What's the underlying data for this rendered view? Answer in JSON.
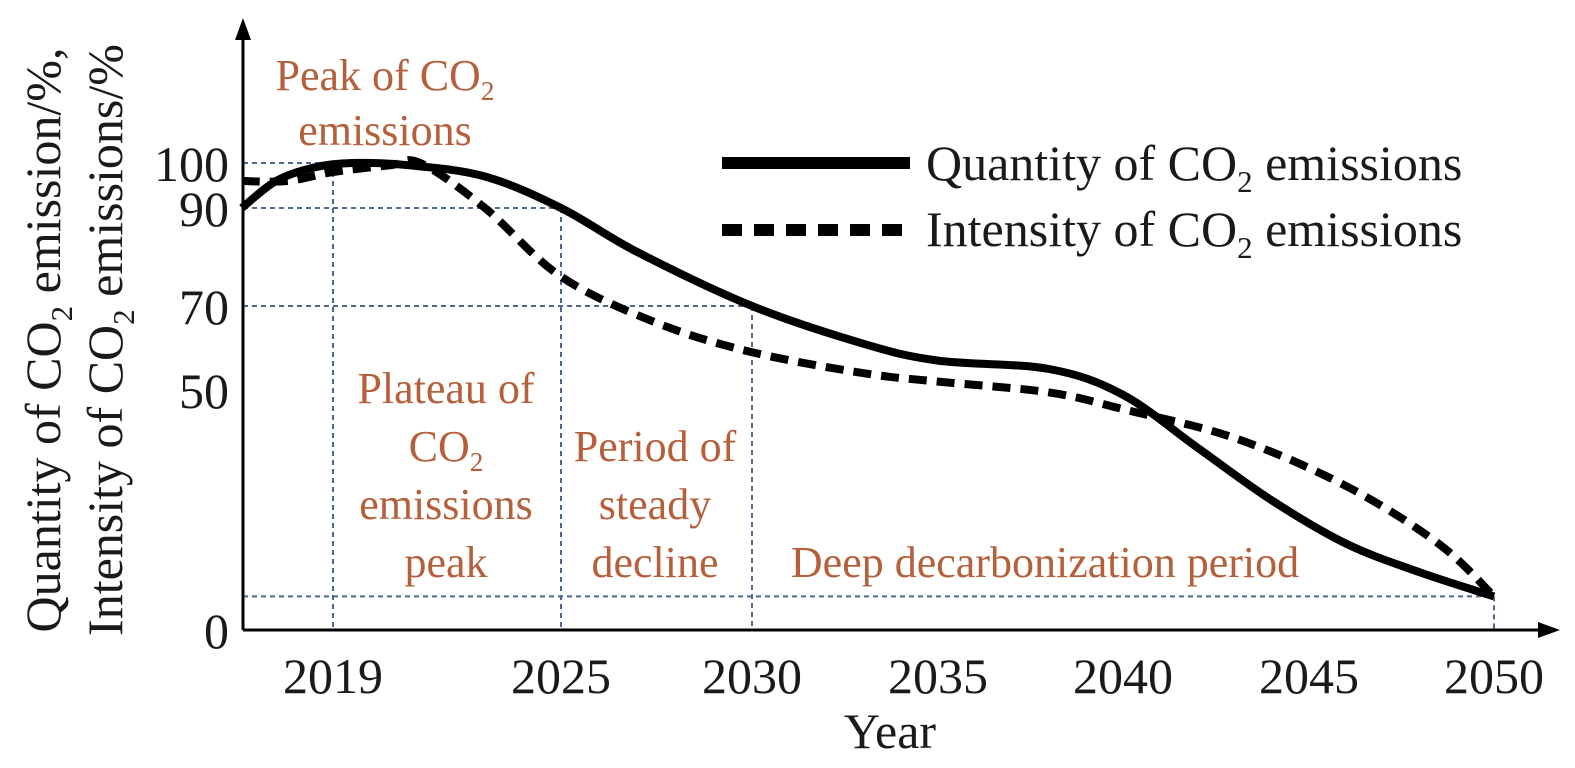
{
  "chart_data": {
    "type": "line",
    "x": [
      2019,
      2025,
      2030,
      2035,
      2040,
      2045,
      2050
    ],
    "x_tick_labels": [
      "2019",
      "2025",
      "2030",
      "2035",
      "2040",
      "2045",
      "2050"
    ],
    "y_tick_labels": [
      "0",
      "50",
      "70",
      "90",
      "100"
    ],
    "xlabel": "Year",
    "ylabel": {
      "line1_prefix": "Quantity of CO",
      "line1_sub": "2",
      "line1_suffix": " emission/%,",
      "line2_prefix": "Intensity of CO",
      "line2_sub": "2",
      "line2_suffix": " emissions/%"
    },
    "series": [
      {
        "name": {
          "prefix": "Quantity of CO",
          "sub": "2",
          "suffix": " emissions"
        },
        "line_style": "solid",
        "x": [
          2016.6,
          2017.5,
          2018.5,
          2019.5,
          2021,
          2023,
          2025,
          2027,
          2030,
          2033,
          2035,
          2038,
          2040,
          2042,
          2044,
          2046,
          2048,
          2050
        ],
        "y": [
          90,
          96,
          99,
          100,
          99.5,
          97,
          90,
          81,
          70,
          61,
          57,
          55,
          49,
          38,
          27,
          18,
          12,
          7
        ]
      },
      {
        "name": {
          "prefix": "Intensity of CO",
          "sub": "2",
          "suffix": " emissions"
        },
        "line_style": "dashed",
        "x": [
          2016.6,
          2017.8,
          2019,
          2020.5,
          2021.3,
          2023,
          2025,
          2027.5,
          2030,
          2033,
          2035,
          2038,
          2040,
          2043,
          2046,
          2048.5,
          2050
        ],
        "y": [
          96,
          96,
          98,
          99.5,
          100,
          90,
          76,
          66,
          59,
          54,
          52,
          49.5,
          46,
          40,
          30,
          18,
          7
        ]
      }
    ],
    "legend_position": "top-right",
    "annotations": {
      "peak": {
        "prefix": "Peak of CO",
        "sub": "2",
        "line2": "emissions"
      },
      "plateau": {
        "line1": "Plateau of",
        "line2_prefix": "CO",
        "line2_sub": "2",
        "line3": "emissions",
        "line4": "peak"
      },
      "steady": {
        "line1": "Period of",
        "line2": "steady",
        "line3": "decline"
      },
      "deep": "Deep decarbonization period"
    },
    "colors": {
      "annotation": "#b5603a",
      "guide_lines": "#4a6a92",
      "series": "#000000"
    }
  }
}
